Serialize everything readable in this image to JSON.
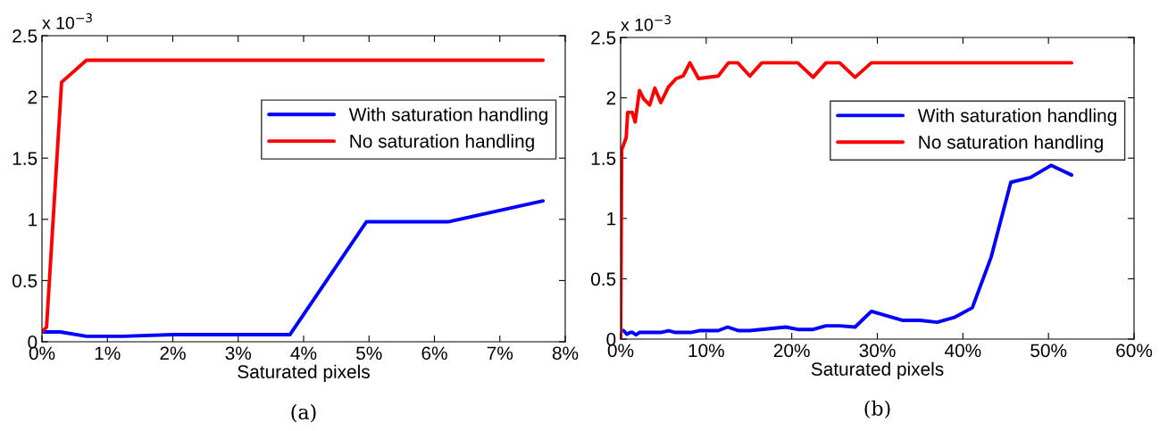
{
  "chart_data": [
    {
      "type": "line",
      "xlabel": "Saturated pixels",
      "annotations": [
        "x 10$^{−3}$",
        "(a)"
      ],
      "series": [
        {
          "name": "With saturation handling",
          "color": "#0000ff",
          "x": [
            0,
            0.28,
            0.68,
            1.23,
            2.0,
            3.79,
            4.96,
            6.21,
            7.66
          ],
          "values": [
            0.08,
            0.08,
            0.045,
            0.045,
            0.058,
            0.058,
            0.98,
            0.98,
            1.15
          ]
        },
        {
          "name": "No saturation handling",
          "color": "#ff0000",
          "x": [
            0,
            0.07,
            0.3,
            0.68,
            7.66
          ],
          "values": [
            0.08,
            0.12,
            2.12,
            2.3,
            2.3
          ]
        }
      ],
      "xlim": [
        0,
        8
      ],
      "xticks": [
        {
          "value": 0,
          "label": "0%"
        },
        {
          "value": 1,
          "label": "1%"
        },
        {
          "value": 2,
          "label": "2%"
        },
        {
          "value": 3,
          "label": "3%"
        },
        {
          "value": 4,
          "label": "4%"
        },
        {
          "value": 5,
          "label": "5%"
        },
        {
          "value": 6,
          "label": "6%"
        },
        {
          "value": 7,
          "label": "7%"
        },
        {
          "value": 8,
          "label": "8%"
        }
      ],
      "ylim": [
        0,
        2.5
      ],
      "yticks": [
        0,
        0.5,
        1,
        1.5,
        2,
        2.5
      ],
      "grid": false,
      "legend": "top right",
      "marker": "none",
      "line_style": "solid"
    },
    {
      "type": "line",
      "xlabel": "Saturated pixels",
      "annotations": [
        "x 10$^{−3}$",
        "(b)"
      ],
      "series": [
        {
          "name": "With saturation handling",
          "color": "#0000ff",
          "x": [
            0,
            0.35,
            0.74,
            1.1,
            1.4,
            1.8,
            2.2,
            4.7,
            5.6,
            6.4,
            8.2,
            9.2,
            11.4,
            12.5,
            13.8,
            15.1,
            19.3,
            20.7,
            22.5,
            24.0,
            25.6,
            27.4,
            29.3,
            33.0,
            35.0,
            37.0,
            39.0,
            41.1,
            43.3,
            45.6,
            47.9,
            50.3,
            52.7
          ],
          "values": [
            0.07,
            0.07,
            0.04,
            0.055,
            0.055,
            0.035,
            0.055,
            0.055,
            0.07,
            0.055,
            0.055,
            0.07,
            0.07,
            0.1,
            0.07,
            0.07,
            0.1,
            0.08,
            0.08,
            0.11,
            0.11,
            0.1,
            0.23,
            0.155,
            0.155,
            0.14,
            0.18,
            0.26,
            0.68,
            1.3,
            1.34,
            1.44,
            1.36
          ]
        },
        {
          "name": "No saturation handling",
          "color": "#ff0000",
          "x": [
            0,
            0.13,
            0.65,
            0.83,
            1.35,
            1.7,
            2.2,
            2.7,
            3.4,
            4.0,
            4.7,
            5.6,
            6.5,
            7.3,
            8.1,
            9.1,
            11.4,
            12.6,
            13.7,
            15.1,
            16.5,
            20.7,
            22.5,
            24.0,
            25.6,
            27.4,
            29.3,
            52.7
          ],
          "values": [
            0,
            1.57,
            1.67,
            1.88,
            1.88,
            1.8,
            2.06,
            1.99,
            1.94,
            2.08,
            1.96,
            2.09,
            2.16,
            2.18,
            2.29,
            2.16,
            2.18,
            2.29,
            2.29,
            2.18,
            2.29,
            2.29,
            2.17,
            2.29,
            2.29,
            2.17,
            2.29,
            2.29
          ]
        }
      ],
      "xlim": [
        0,
        60
      ],
      "xticks": [
        {
          "value": 0,
          "label": "0%"
        },
        {
          "value": 10,
          "label": "10%"
        },
        {
          "value": 20,
          "label": "20%"
        },
        {
          "value": 30,
          "label": "30%"
        },
        {
          "value": 40,
          "label": "40%"
        },
        {
          "value": 50,
          "label": "50%"
        },
        {
          "value": 60,
          "label": "60%"
        }
      ],
      "ylim": [
        0,
        2.5
      ],
      "yticks": [
        0,
        0.5,
        1,
        1.5,
        2,
        2.5
      ],
      "grid": false,
      "legend": "top right",
      "marker": "none",
      "line_style": "solid"
    }
  ]
}
